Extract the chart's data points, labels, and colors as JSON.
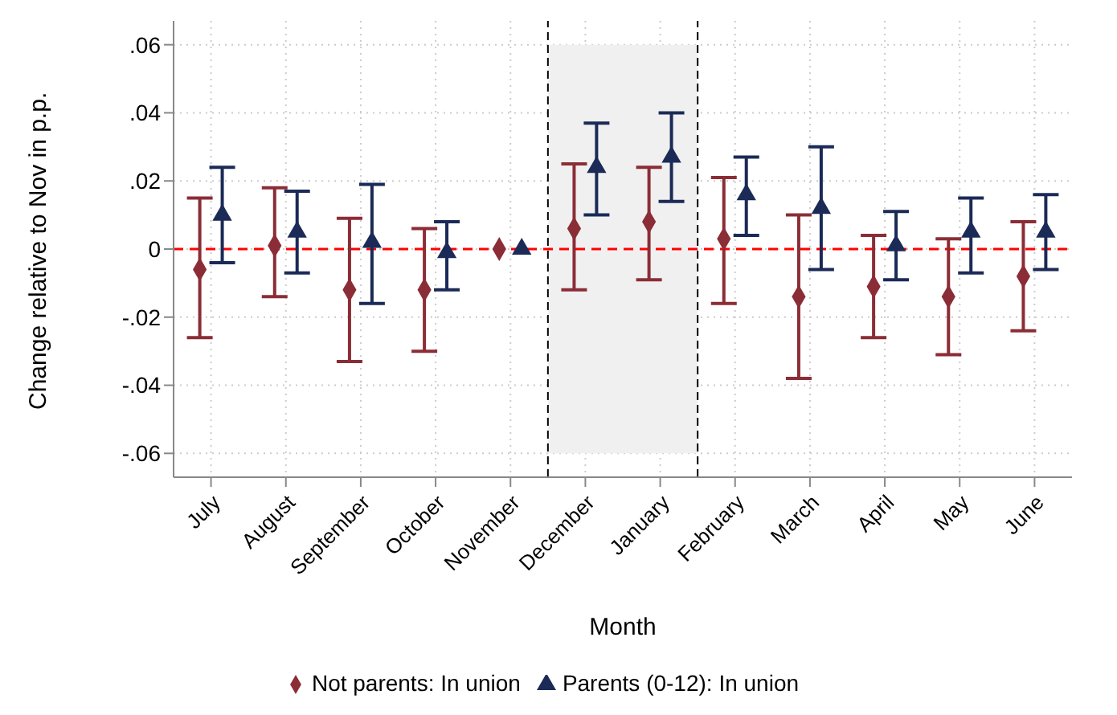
{
  "chart_data": {
    "type": "scatter",
    "xlabel": "Month",
    "ylabel": "Change relative to Nov in p.p.",
    "categories": [
      "July",
      "August",
      "September",
      "October",
      "November",
      "December",
      "January",
      "February",
      "March",
      "April",
      "May",
      "June"
    ],
    "series": [
      {
        "name": "Not parents: In union",
        "color": "#8b2d36",
        "marker": "diamond",
        "values": [
          -0.006,
          0.001,
          -0.012,
          -0.012,
          0,
          0.006,
          0.008,
          0.003,
          -0.014,
          -0.011,
          -0.014,
          -0.008
        ],
        "errors": [
          [
            -0.026,
            0.015
          ],
          [
            -0.014,
            0.018
          ],
          [
            -0.033,
            0.009
          ],
          [
            -0.03,
            0.006
          ],
          null,
          [
            -0.012,
            0.025
          ],
          [
            -0.009,
            0.024
          ],
          [
            -0.016,
            0.021
          ],
          [
            -0.038,
            0.01
          ],
          [
            -0.026,
            0.004
          ],
          [
            -0.031,
            0.003
          ],
          [
            -0.024,
            0.008
          ]
        ]
      },
      {
        "name": "Parents (0-12): In union",
        "color": "#1b2a56",
        "marker": "triangle",
        "values": [
          0.01,
          0.005,
          0.002,
          -0.001,
          0,
          0.024,
          0.027,
          0.016,
          0.012,
          0.001,
          0.005,
          0.005
        ],
        "errors": [
          [
            -0.004,
            0.024
          ],
          [
            -0.007,
            0.017
          ],
          [
            -0.016,
            0.019
          ],
          [
            -0.012,
            0.008
          ],
          null,
          [
            0.01,
            0.037
          ],
          [
            0.014,
            0.04
          ],
          [
            0.004,
            0.027
          ],
          [
            -0.006,
            0.03
          ],
          [
            -0.009,
            0.011
          ],
          [
            -0.007,
            0.015
          ],
          [
            -0.006,
            0.016
          ]
        ]
      }
    ],
    "ylim": [
      -0.067,
      0.067
    ],
    "yticks": [
      {
        "value": -0.06,
        "label": "-.06"
      },
      {
        "value": -0.04,
        "label": "-.04"
      },
      {
        "value": -0.02,
        "label": "-.02"
      },
      0,
      {
        "value": 0.02,
        "label": ".02"
      },
      {
        "value": 0.04,
        "label": ".04"
      },
      {
        "value": 0.06,
        "label": ".06"
      }
    ],
    "grid": true,
    "legend": "bottom",
    "ref_lines": [
      {
        "axis": "y",
        "value": 0,
        "color": "#ff0000",
        "line_style": "dashed"
      }
    ],
    "bands": [
      {
        "axis": "x",
        "from": "December",
        "to": "January",
        "color": "#f0f0f0"
      }
    ]
  }
}
